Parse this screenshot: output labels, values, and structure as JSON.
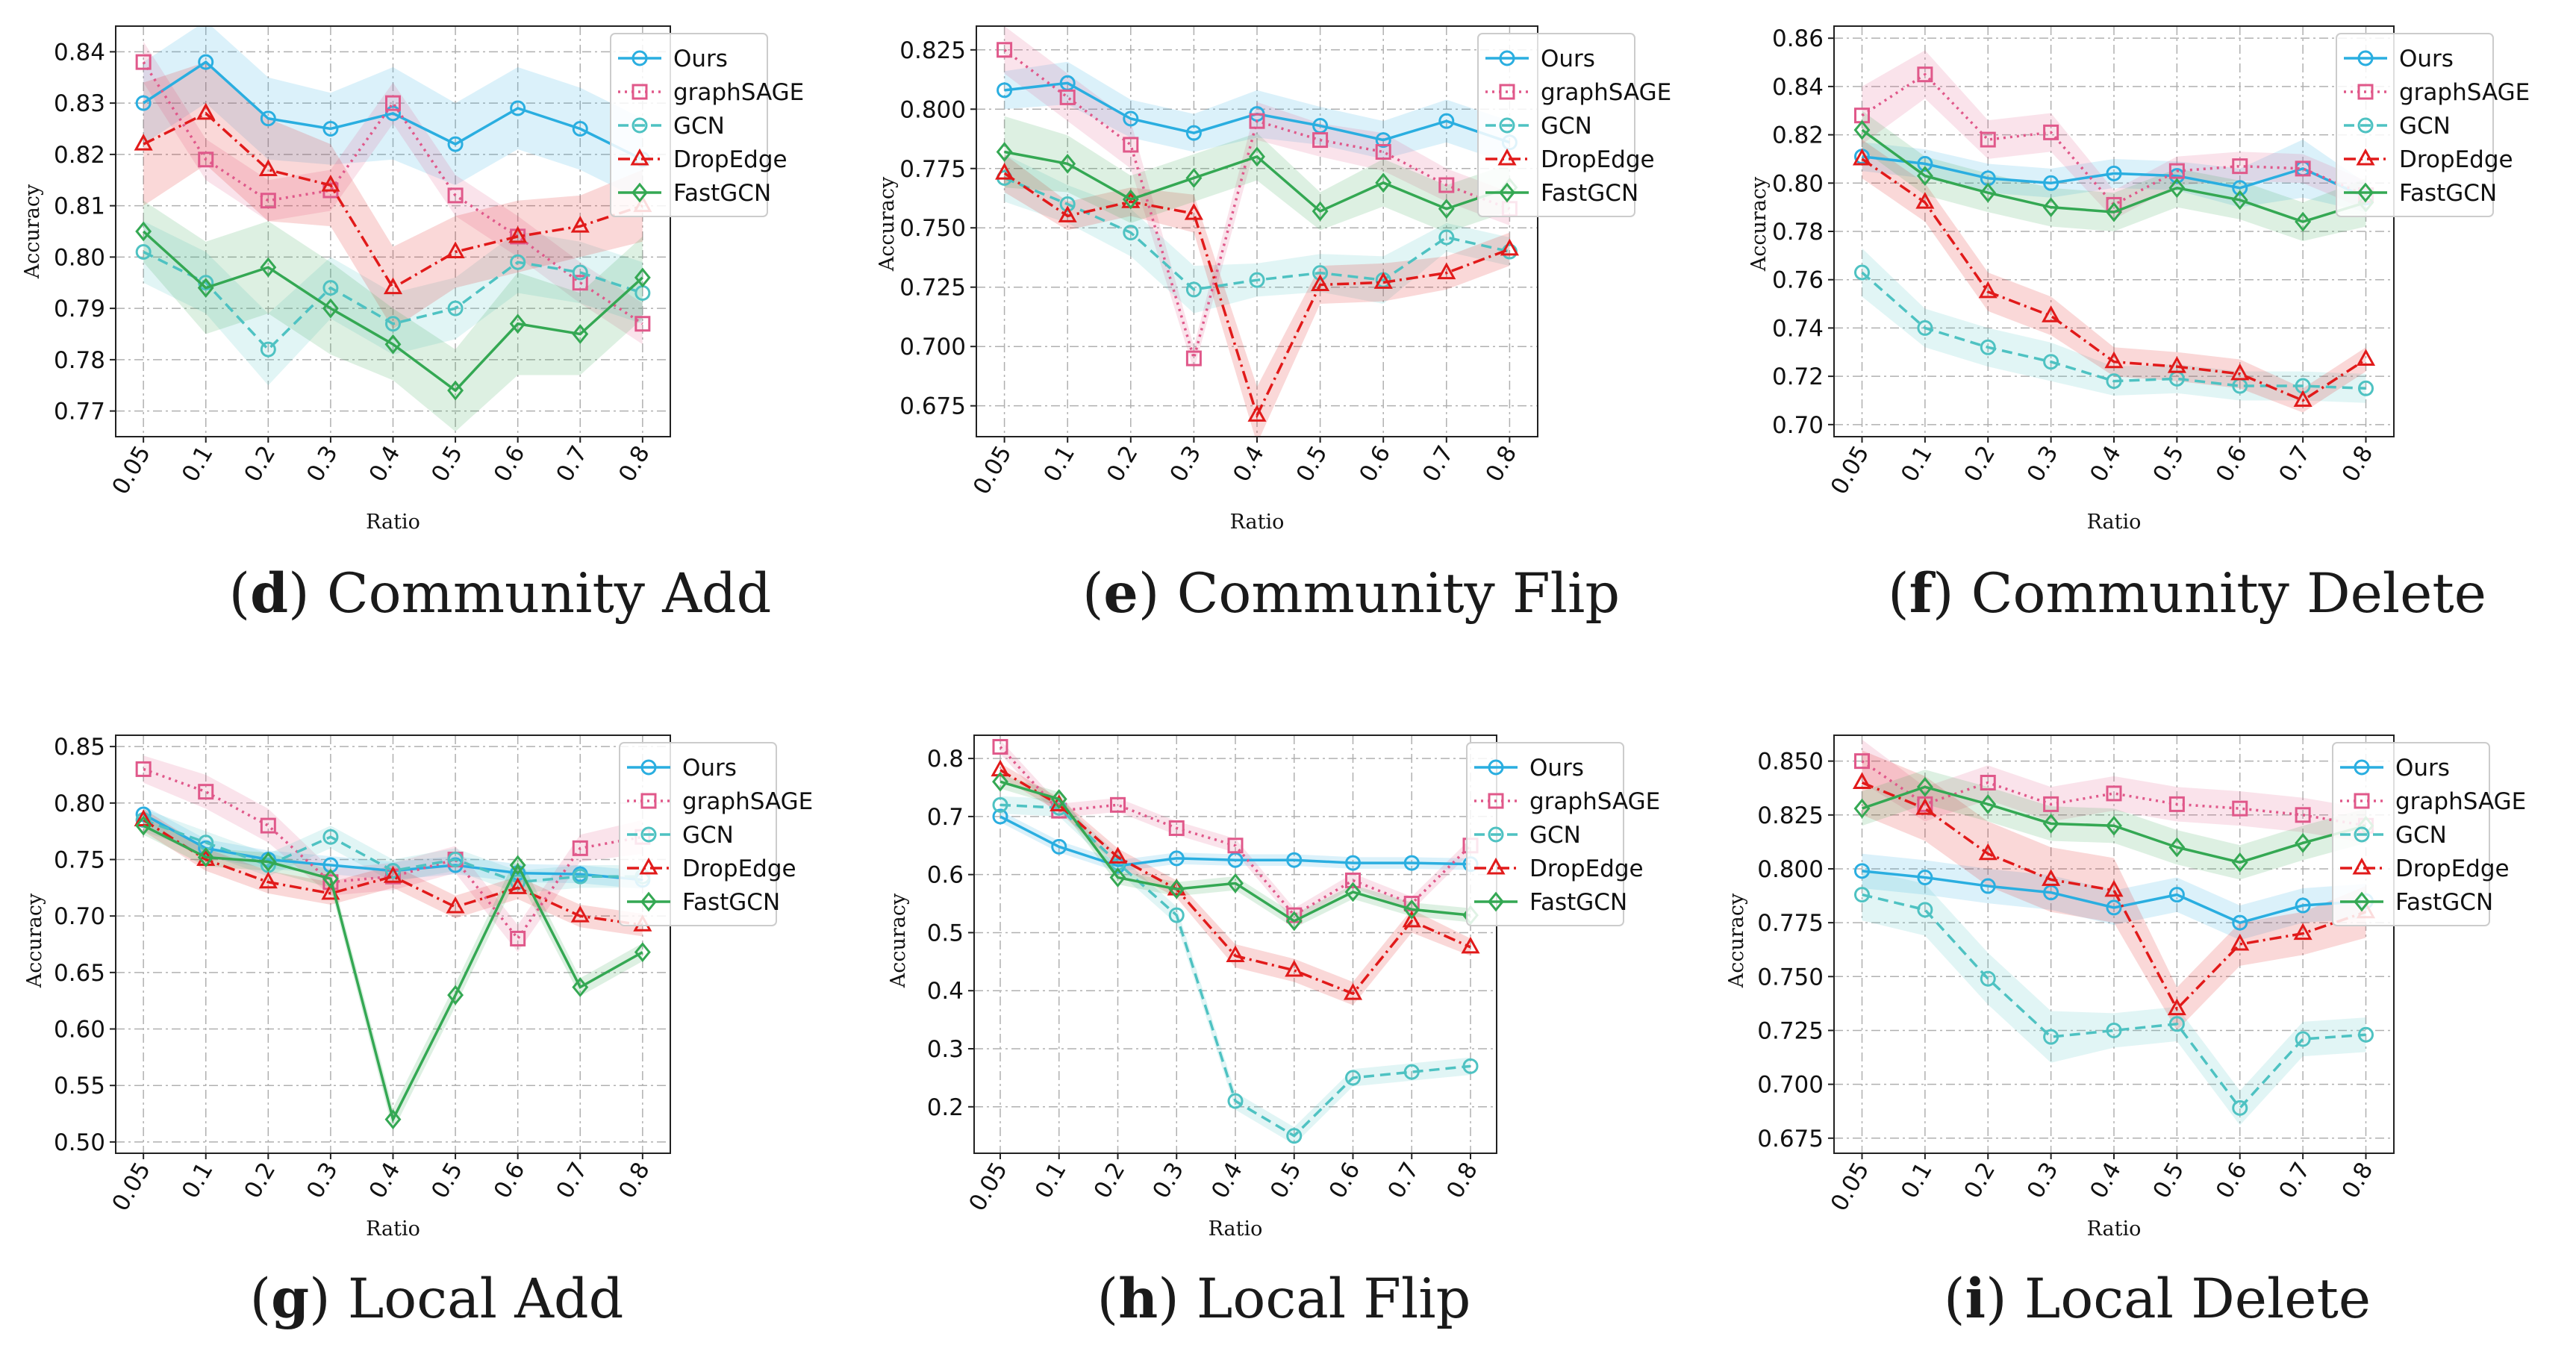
{
  "series_styles": [
    {
      "key": "ours",
      "name": "Ours",
      "color": "#2aaee0",
      "dash": "",
      "marker": "circle"
    },
    {
      "key": "sage",
      "name": "graphSAGE",
      "color": "#e0588a",
      "dash": "3,6",
      "marker": "square"
    },
    {
      "key": "gcn",
      "name": "GCN",
      "color": "#4ec2c2",
      "dash": "14,8",
      "marker": "circle"
    },
    {
      "key": "drop",
      "name": "DropEdge",
      "color": "#e11a1a",
      "dash": "16,6,3,6",
      "marker": "triangle"
    },
    {
      "key": "fast",
      "name": "FastGCN",
      "color": "#34a853",
      "dash": "",
      "marker": "diamond"
    }
  ],
  "chart_data": [
    {
      "type": "line",
      "id": "d",
      "caption_letter": "d",
      "caption_text": "Community Add",
      "xlabel": "Ratio",
      "ylabel": "Accuracy",
      "categories": [
        "0.05",
        "0.1",
        "0.2",
        "0.3",
        "0.4",
        "0.5",
        "0.6",
        "0.7",
        "0.8"
      ],
      "ylim": [
        0.765,
        0.845
      ],
      "yticks": [
        0.77,
        0.78,
        0.79,
        0.8,
        0.81,
        0.82,
        0.83,
        0.84
      ],
      "ytick_labels": [
        "0.77",
        "0.78",
        "0.79",
        "0.80",
        "0.81",
        "0.82",
        "0.83",
        "0.84"
      ],
      "series": [
        {
          "name": "Ours",
          "values": [
            0.83,
            0.838,
            0.827,
            0.825,
            0.828,
            0.822,
            0.829,
            0.825,
            0.819
          ],
          "band": [
            0.008,
            0.008,
            0.008,
            0.007,
            0.009,
            0.008,
            0.008,
            0.008,
            0.008
          ]
        },
        {
          "name": "graphSAGE",
          "values": [
            0.838,
            0.819,
            0.811,
            0.813,
            0.83,
            0.812,
            0.804,
            0.795,
            0.787
          ],
          "band": [
            0.004,
            0.004,
            0.004,
            0.004,
            0.004,
            0.004,
            0.004,
            0.004,
            0.004
          ]
        },
        {
          "name": "GCN",
          "values": [
            0.801,
            0.795,
            0.782,
            0.794,
            0.787,
            0.79,
            0.799,
            0.797,
            0.793
          ],
          "band": [
            0.006,
            0.006,
            0.007,
            0.006,
            0.006,
            0.006,
            0.006,
            0.006,
            0.006
          ]
        },
        {
          "name": "DropEdge",
          "values": [
            0.822,
            0.828,
            0.817,
            0.814,
            0.794,
            0.801,
            0.804,
            0.806,
            0.81
          ],
          "band": [
            0.012,
            0.01,
            0.01,
            0.008,
            0.008,
            0.007,
            0.007,
            0.006,
            0.007
          ]
        },
        {
          "name": "FastGCN",
          "values": [
            0.805,
            0.794,
            0.798,
            0.79,
            0.783,
            0.774,
            0.787,
            0.785,
            0.796
          ],
          "band": [
            0.006,
            0.009,
            0.009,
            0.009,
            0.007,
            0.008,
            0.01,
            0.008,
            0.008
          ]
        }
      ]
    },
    {
      "type": "line",
      "id": "e",
      "caption_letter": "e",
      "caption_text": "Community Flip",
      "xlabel": "Ratio",
      "ylabel": "Accuracy",
      "categories": [
        "0.05",
        "0.1",
        "0.2",
        "0.3",
        "0.4",
        "0.5",
        "0.6",
        "0.7",
        "0.8"
      ],
      "ylim": [
        0.662,
        0.835
      ],
      "yticks": [
        0.675,
        0.7,
        0.725,
        0.75,
        0.775,
        0.8,
        0.825
      ],
      "ytick_labels": [
        "0.675",
        "0.700",
        "0.725",
        "0.750",
        "0.775",
        "0.800",
        "0.825"
      ],
      "series": [
        {
          "name": "Ours",
          "values": [
            0.808,
            0.811,
            0.796,
            0.79,
            0.798,
            0.793,
            0.787,
            0.795,
            0.786
          ],
          "band": [
            0.008,
            0.009,
            0.008,
            0.008,
            0.01,
            0.008,
            0.008,
            0.009,
            0.009
          ]
        },
        {
          "name": "graphSAGE",
          "values": [
            0.825,
            0.805,
            0.785,
            0.695,
            0.795,
            0.787,
            0.782,
            0.768,
            0.758
          ],
          "band": [
            0.01,
            0.01,
            0.01,
            0.005,
            0.008,
            0.007,
            0.008,
            0.007,
            0.007
          ]
        },
        {
          "name": "GCN",
          "values": [
            0.771,
            0.76,
            0.748,
            0.724,
            0.728,
            0.731,
            0.728,
            0.746,
            0.74
          ],
          "band": [
            0.01,
            0.008,
            0.01,
            0.01,
            0.007,
            0.008,
            0.01,
            0.006,
            0.006
          ]
        },
        {
          "name": "DropEdge",
          "values": [
            0.773,
            0.755,
            0.761,
            0.756,
            0.671,
            0.726,
            0.727,
            0.731,
            0.741
          ],
          "band": [
            0.008,
            0.006,
            0.006,
            0.008,
            0.012,
            0.008,
            0.008,
            0.007,
            0.007
          ]
        },
        {
          "name": "FastGCN",
          "values": [
            0.782,
            0.777,
            0.762,
            0.771,
            0.78,
            0.757,
            0.769,
            0.758,
            0.767
          ],
          "band": [
            0.015,
            0.012,
            0.01,
            0.01,
            0.01,
            0.008,
            0.01,
            0.01,
            0.01
          ]
        }
      ]
    },
    {
      "type": "line",
      "id": "f",
      "caption_letter": "f",
      "caption_text": "Community Delete",
      "xlabel": "Ratio",
      "ylabel": "Accuracy",
      "categories": [
        "0.05",
        "0.1",
        "0.2",
        "0.3",
        "0.4",
        "0.5",
        "0.6",
        "0.7",
        "0.8"
      ],
      "ylim": [
        0.695,
        0.865
      ],
      "yticks": [
        0.7,
        0.72,
        0.74,
        0.76,
        0.78,
        0.8,
        0.82,
        0.84,
        0.86
      ],
      "ytick_labels": [
        "0.70",
        "0.72",
        "0.74",
        "0.76",
        "0.78",
        "0.80",
        "0.82",
        "0.84",
        "0.86"
      ],
      "series": [
        {
          "name": "Ours",
          "values": [
            0.811,
            0.808,
            0.802,
            0.8,
            0.804,
            0.803,
            0.798,
            0.806,
            0.794
          ],
          "band": [
            0.006,
            0.006,
            0.006,
            0.006,
            0.006,
            0.006,
            0.008,
            0.012,
            0.006
          ]
        },
        {
          "name": "graphSAGE",
          "values": [
            0.828,
            0.845,
            0.818,
            0.821,
            0.791,
            0.805,
            0.807,
            0.806,
            0.795
          ],
          "band": [
            0.012,
            0.01,
            0.008,
            0.008,
            0.006,
            0.006,
            0.006,
            0.006,
            0.006
          ]
        },
        {
          "name": "GCN",
          "values": [
            0.763,
            0.74,
            0.732,
            0.726,
            0.718,
            0.719,
            0.716,
            0.716,
            0.715
          ],
          "band": [
            0.01,
            0.008,
            0.008,
            0.008,
            0.006,
            0.006,
            0.006,
            0.006,
            0.006
          ]
        },
        {
          "name": "DropEdge",
          "values": [
            0.81,
            0.792,
            0.755,
            0.745,
            0.726,
            0.724,
            0.721,
            0.71,
            0.727
          ],
          "band": [
            0.008,
            0.008,
            0.008,
            0.008,
            0.006,
            0.006,
            0.006,
            0.005,
            0.005
          ]
        },
        {
          "name": "FastGCN",
          "values": [
            0.822,
            0.803,
            0.796,
            0.79,
            0.788,
            0.798,
            0.793,
            0.784,
            0.792
          ],
          "band": [
            0.008,
            0.008,
            0.008,
            0.008,
            0.008,
            0.008,
            0.008,
            0.008,
            0.01
          ]
        }
      ]
    },
    {
      "type": "line",
      "id": "g",
      "caption_letter": "g",
      "caption_text": "Local Add",
      "xlabel": "Ratio",
      "ylabel": "Accuracy",
      "categories": [
        "0.05",
        "0.1",
        "0.2",
        "0.3",
        "0.4",
        "0.5",
        "0.6",
        "0.7",
        "0.8"
      ],
      "ylim": [
        0.49,
        0.86
      ],
      "yticks": [
        0.5,
        0.55,
        0.6,
        0.65,
        0.7,
        0.75,
        0.8,
        0.85
      ],
      "ytick_labels": [
        "0.50",
        "0.55",
        "0.60",
        "0.65",
        "0.70",
        "0.75",
        "0.80",
        "0.85"
      ],
      "series": [
        {
          "name": "Ours",
          "values": [
            0.79,
            0.76,
            0.75,
            0.745,
            0.74,
            0.745,
            0.738,
            0.737,
            0.732
          ],
          "band": [
            0.008,
            0.008,
            0.008,
            0.008,
            0.008,
            0.008,
            0.008,
            0.008,
            0.008
          ]
        },
        {
          "name": "graphSAGE",
          "values": [
            0.83,
            0.81,
            0.78,
            0.73,
            0.735,
            0.75,
            0.68,
            0.76,
            0.77
          ],
          "band": [
            0.012,
            0.015,
            0.015,
            0.012,
            0.012,
            0.012,
            0.012,
            0.012,
            0.015
          ]
        },
        {
          "name": "GCN",
          "values": [
            0.785,
            0.765,
            0.745,
            0.77,
            0.74,
            0.75,
            0.73,
            0.735,
            0.735
          ],
          "band": [
            0.01,
            0.01,
            0.01,
            0.01,
            0.01,
            0.01,
            0.01,
            0.01,
            0.01
          ]
        },
        {
          "name": "DropEdge",
          "values": [
            0.785,
            0.75,
            0.73,
            0.72,
            0.735,
            0.708,
            0.725,
            0.7,
            0.692
          ],
          "band": [
            0.01,
            0.01,
            0.01,
            0.01,
            0.01,
            0.01,
            0.01,
            0.01,
            0.01
          ]
        },
        {
          "name": "FastGCN",
          "values": [
            0.78,
            0.752,
            0.748,
            0.733,
            0.52,
            0.63,
            0.745,
            0.637,
            0.668
          ],
          "band": [
            0.008,
            0.008,
            0.008,
            0.008,
            0.01,
            0.01,
            0.01,
            0.008,
            0.008
          ]
        }
      ]
    },
    {
      "type": "line",
      "id": "h",
      "caption_letter": "h",
      "caption_text": "Local Flip",
      "xlabel": "Ratio",
      "ylabel": "Accuracy",
      "categories": [
        "0.05",
        "0.1",
        "0.2",
        "0.3",
        "0.4",
        "0.5",
        "0.6",
        "0.7",
        "0.8"
      ],
      "ylim": [
        0.12,
        0.84
      ],
      "yticks": [
        0.2,
        0.3,
        0.4,
        0.5,
        0.6,
        0.7,
        0.8
      ],
      "ytick_labels": [
        "0.2",
        "0.3",
        "0.4",
        "0.5",
        "0.6",
        "0.7",
        "0.8"
      ],
      "series": [
        {
          "name": "Ours",
          "values": [
            0.7,
            0.648,
            0.615,
            0.628,
            0.625,
            0.625,
            0.62,
            0.62,
            0.618
          ],
          "band": [
            0.01,
            0.01,
            0.01,
            0.01,
            0.01,
            0.01,
            0.01,
            0.01,
            0.01
          ]
        },
        {
          "name": "graphSAGE",
          "values": [
            0.82,
            0.71,
            0.72,
            0.68,
            0.65,
            0.53,
            0.59,
            0.55,
            0.65
          ],
          "band": [
            0.012,
            0.012,
            0.012,
            0.012,
            0.012,
            0.012,
            0.012,
            0.012,
            0.012
          ]
        },
        {
          "name": "GCN",
          "values": [
            0.72,
            0.715,
            0.62,
            0.53,
            0.21,
            0.15,
            0.25,
            0.26,
            0.27
          ],
          "band": [
            0.015,
            0.015,
            0.015,
            0.015,
            0.015,
            0.015,
            0.015,
            0.015,
            0.015
          ]
        },
        {
          "name": "DropEdge",
          "values": [
            0.78,
            0.72,
            0.63,
            0.575,
            0.46,
            0.435,
            0.395,
            0.52,
            0.475
          ],
          "band": [
            0.012,
            0.012,
            0.015,
            0.015,
            0.02,
            0.02,
            0.02,
            0.02,
            0.015
          ]
        },
        {
          "name": "FastGCN",
          "values": [
            0.76,
            0.73,
            0.595,
            0.575,
            0.585,
            0.52,
            0.57,
            0.54,
            0.53
          ],
          "band": [
            0.012,
            0.012,
            0.012,
            0.012,
            0.012,
            0.012,
            0.012,
            0.012,
            0.012
          ]
        }
      ]
    },
    {
      "type": "line",
      "id": "i",
      "caption_letter": "i",
      "caption_text": "Local Delete",
      "xlabel": "Ratio",
      "ylabel": "Accuracy",
      "categories": [
        "0.05",
        "0.1",
        "0.2",
        "0.3",
        "0.4",
        "0.5",
        "0.6",
        "0.7",
        "0.8"
      ],
      "ylim": [
        0.668,
        0.862
      ],
      "yticks": [
        0.675,
        0.7,
        0.725,
        0.75,
        0.775,
        0.8,
        0.825,
        0.85
      ],
      "ytick_labels": [
        "0.675",
        "0.700",
        "0.725",
        "0.750",
        "0.775",
        "0.800",
        "0.825",
        "0.850"
      ],
      "series": [
        {
          "name": "Ours",
          "values": [
            0.799,
            0.796,
            0.792,
            0.789,
            0.782,
            0.788,
            0.775,
            0.783,
            0.785
          ],
          "band": [
            0.008,
            0.008,
            0.008,
            0.008,
            0.008,
            0.008,
            0.008,
            0.008,
            0.008
          ]
        },
        {
          "name": "graphSAGE",
          "values": [
            0.85,
            0.83,
            0.84,
            0.83,
            0.835,
            0.83,
            0.828,
            0.825,
            0.82
          ],
          "band": [
            0.01,
            0.008,
            0.008,
            0.008,
            0.008,
            0.008,
            0.008,
            0.008,
            0.008
          ]
        },
        {
          "name": "GCN",
          "values": [
            0.788,
            0.781,
            0.749,
            0.722,
            0.725,
            0.728,
            0.689,
            0.721,
            0.723
          ],
          "band": [
            0.012,
            0.012,
            0.012,
            0.012,
            0.008,
            0.008,
            0.008,
            0.008,
            0.008
          ]
        },
        {
          "name": "DropEdge",
          "values": [
            0.84,
            0.828,
            0.807,
            0.795,
            0.79,
            0.735,
            0.765,
            0.77,
            0.78
          ],
          "band": [
            0.015,
            0.015,
            0.015,
            0.015,
            0.015,
            0.01,
            0.01,
            0.01,
            0.012
          ]
        },
        {
          "name": "FastGCN",
          "values": [
            0.828,
            0.838,
            0.83,
            0.821,
            0.82,
            0.81,
            0.803,
            0.812,
            0.82
          ],
          "band": [
            0.008,
            0.008,
            0.008,
            0.008,
            0.008,
            0.008,
            0.008,
            0.008,
            0.008
          ]
        }
      ]
    }
  ]
}
